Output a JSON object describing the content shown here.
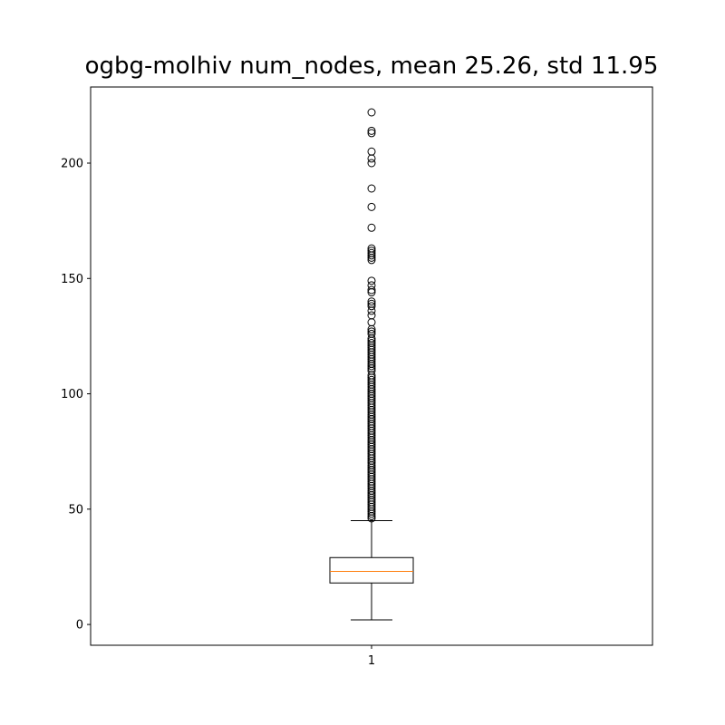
{
  "chart_data": {
    "type": "box",
    "title": "ogbg-molhiv num_nodes, mean 25.26, std 11.95",
    "xlabel": "",
    "ylabel": "",
    "categories": [
      "1"
    ],
    "ylim": [
      -9,
      233
    ],
    "y_ticks": [
      0,
      50,
      100,
      150,
      200
    ],
    "grid": false,
    "box": {
      "whisker_low": 2,
      "q1": 18,
      "median": 23,
      "q3": 29,
      "whisker_high": 45,
      "box_color": "#000000",
      "median_color": "#ff7f0e"
    },
    "outliers": [
      46,
      47,
      48,
      49,
      50,
      51,
      52,
      53,
      54,
      55,
      56,
      57,
      58,
      59,
      60,
      61,
      62,
      63,
      64,
      65,
      66,
      67,
      68,
      69,
      70,
      71,
      72,
      73,
      74,
      75,
      76,
      77,
      78,
      79,
      80,
      81,
      82,
      83,
      84,
      85,
      86,
      87,
      88,
      89,
      90,
      91,
      92,
      93,
      94,
      95,
      96,
      97,
      98,
      99,
      100,
      101,
      102,
      103,
      104,
      105,
      106,
      107,
      108,
      110,
      111,
      112,
      113,
      114,
      115,
      116,
      117,
      118,
      119,
      120,
      121,
      122,
      123,
      124,
      126,
      127,
      128,
      131,
      134,
      136,
      138,
      139,
      140,
      144,
      145,
      147,
      149,
      158,
      159,
      160,
      161,
      162,
      163,
      172,
      181,
      189,
      200,
      202,
      205,
      213,
      214,
      222
    ]
  }
}
